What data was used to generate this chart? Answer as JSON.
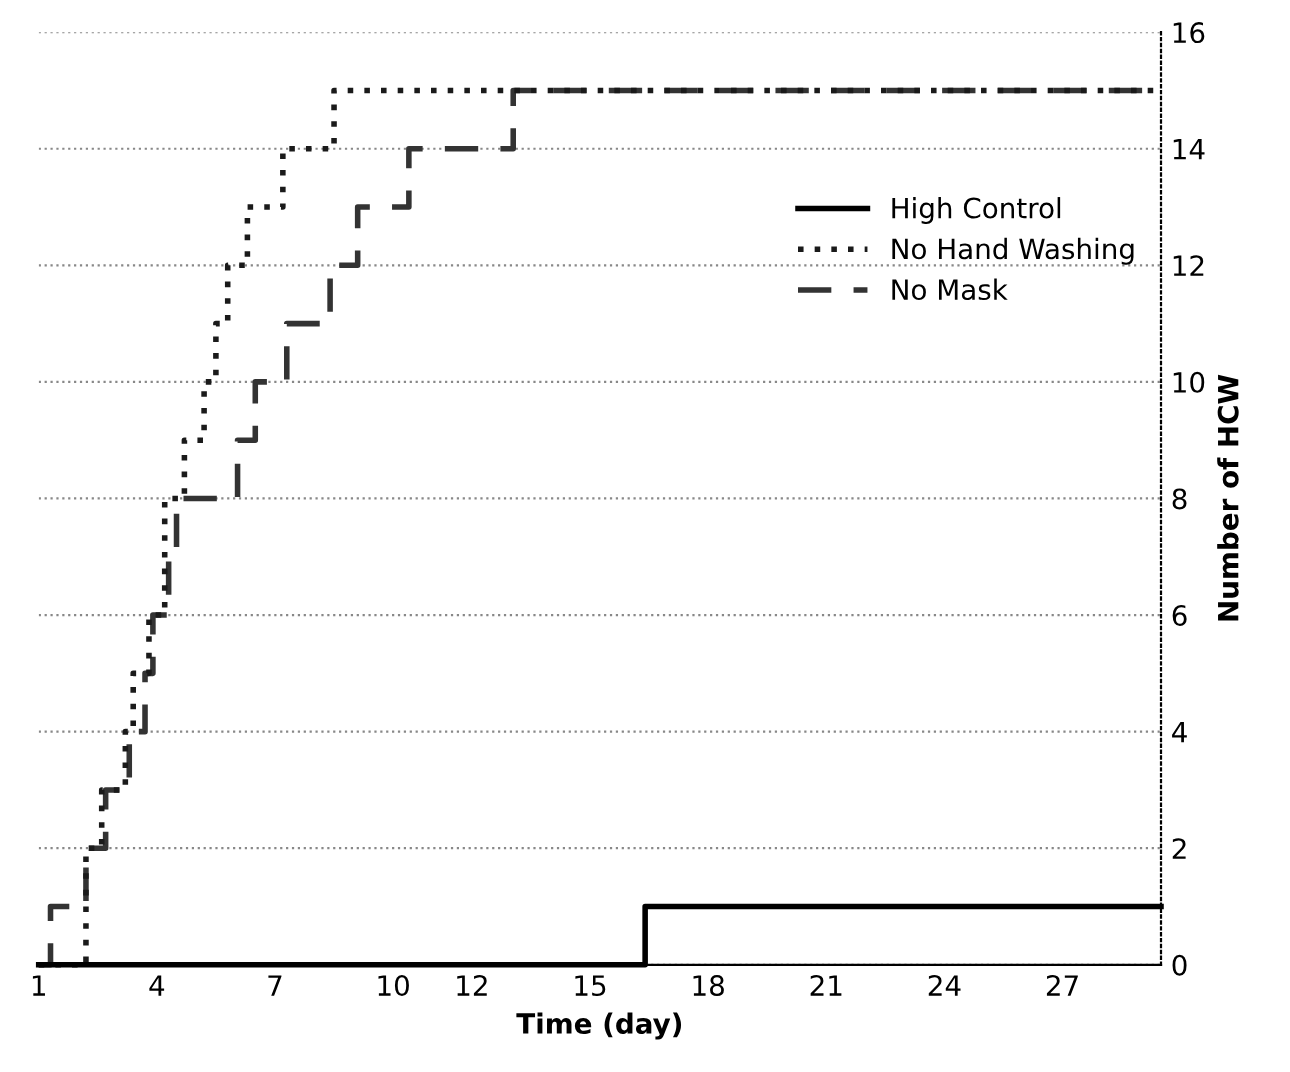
{
  "chart_data": {
    "type": "step",
    "xlabel": "Time (day)",
    "ylabel": "Number of HCW",
    "xlim": [
      1,
      29.5
    ],
    "ylim": [
      0,
      16
    ],
    "xticks": [
      1,
      4,
      7,
      10,
      12,
      15,
      18,
      21,
      24,
      27
    ],
    "yticks": [
      0,
      2,
      4,
      6,
      8,
      10,
      12,
      14,
      16
    ],
    "grid": "y",
    "legend": "top right",
    "series": [
      {
        "name": "High Control",
        "color": "#000000",
        "line_style": "solid",
        "x": [
          1,
          16.4,
          29.5
        ],
        "values": [
          0,
          1,
          1
        ]
      },
      {
        "name": "No Hand Washing",
        "color": "#1a1a1a",
        "line_style": "dotted",
        "x": [
          1,
          2.2,
          2.6,
          3.2,
          3.4,
          3.8,
          4.2,
          4.7,
          5.2,
          5.5,
          5.8,
          6.3,
          7.2,
          8.5,
          29.5
        ],
        "values": [
          0,
          2,
          3,
          4,
          5,
          6,
          8,
          9,
          10,
          11,
          12,
          13,
          14,
          15,
          15
        ]
      },
      {
        "name": "No Mask",
        "color": "#333333",
        "line_style": "dashed",
        "x": [
          1,
          1.3,
          2.2,
          2.7,
          3.3,
          3.7,
          3.9,
          4.3,
          4.5,
          5.3,
          6.05,
          6.5,
          7.3,
          8.4,
          9.1,
          10.4,
          13.05,
          29.5
        ],
        "values": [
          0,
          1,
          2,
          3,
          4,
          5,
          6,
          7,
          8,
          8,
          9,
          10,
          11,
          12,
          13,
          14,
          15,
          15
        ]
      }
    ]
  }
}
